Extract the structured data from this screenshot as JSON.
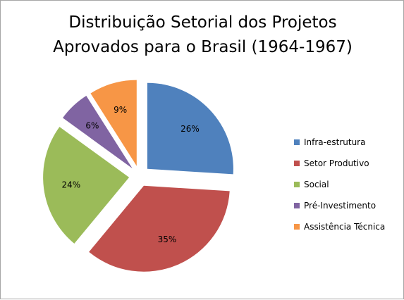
{
  "chart_data": {
    "type": "pie",
    "title_lines": [
      "Distribuição Setorial dos Projetos",
      "Aprovados para o Brasil (1964-1967)"
    ],
    "categories": [
      "Infra-estrutura",
      "Setor Produtivo",
      "Social",
      "Pré-Investimento",
      "Assistência Técnica"
    ],
    "values": [
      26,
      35,
      24,
      6,
      9
    ],
    "data_labels": [
      "26%",
      "35%",
      "24%",
      "6%",
      "9%"
    ],
    "colors": [
      "#4f81bd",
      "#c0504d",
      "#9bbb59",
      "#8064a2",
      "#f79646"
    ],
    "exploded": true,
    "legend_position": "right"
  }
}
